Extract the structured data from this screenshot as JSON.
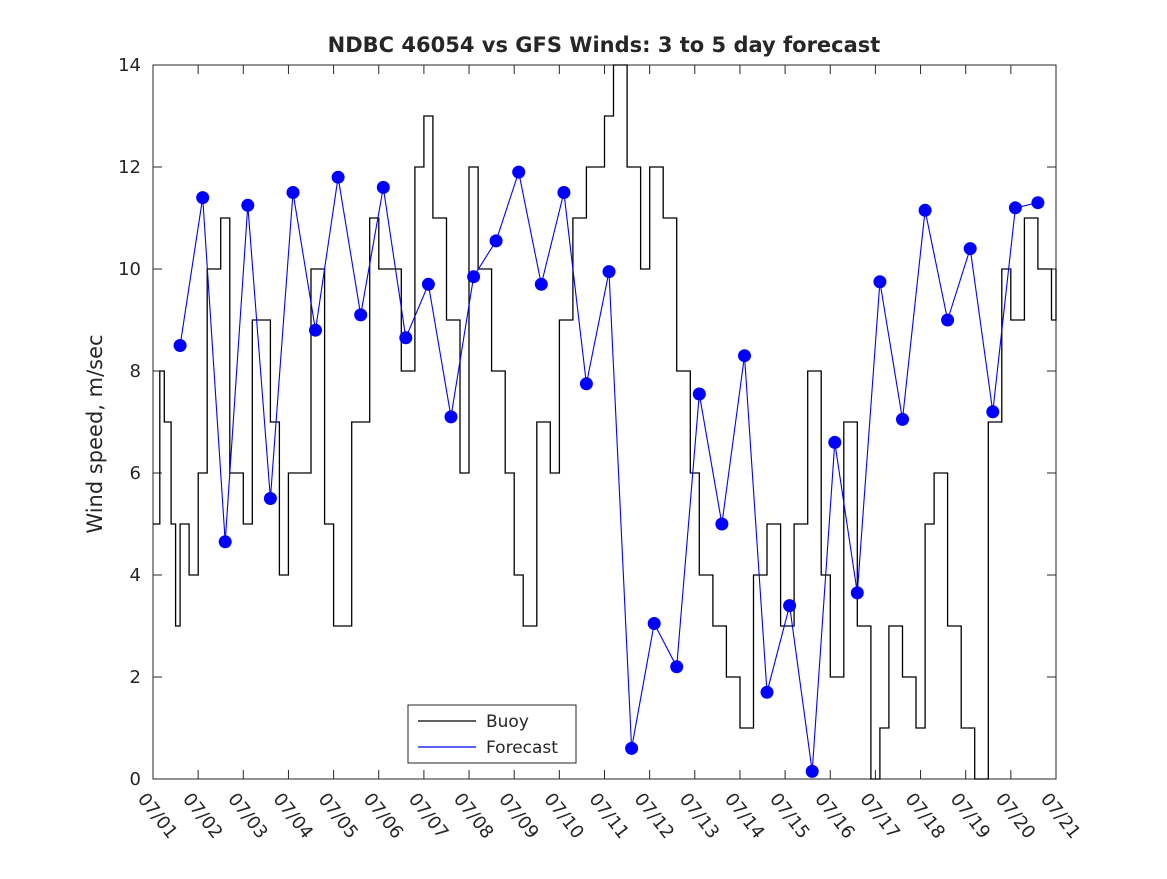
{
  "chart_data": {
    "type": "line",
    "title": "NDBC 46054 vs GFS Winds: 3 to 5 day forecast",
    "xlabel": "",
    "ylabel": "Wind speed, m/sec",
    "x_ticks": [
      "07/01",
      "07/02",
      "07/03",
      "07/04",
      "07/05",
      "07/06",
      "07/07",
      "07/08",
      "07/09",
      "07/10",
      "07/11",
      "07/12",
      "07/13",
      "07/14",
      "07/15",
      "07/16",
      "07/17",
      "07/18",
      "07/19",
      "07/20",
      "07/21"
    ],
    "x_range_days": [
      0,
      20
    ],
    "ylim": [
      0,
      14
    ],
    "y_ticks": [
      "0",
      "2",
      "4",
      "6",
      "8",
      "10",
      "12",
      "14"
    ],
    "grid": false,
    "legend_position": "bottom-center",
    "legend": [
      "Buoy",
      "Forecast"
    ],
    "colors": {
      "buoy": "#000000",
      "forecast": "#0000ff",
      "axis": "#262626"
    },
    "buoy": {
      "name": "Buoy",
      "x": [
        0,
        0.15,
        0.25,
        0.4,
        0.5,
        0.6,
        0.8,
        1.0,
        1.2,
        1.5,
        1.7,
        2.0,
        2.2,
        2.6,
        2.8,
        3.0,
        3.5,
        3.8,
        4.0,
        4.4,
        4.8,
        5.0,
        5.5,
        5.8,
        6.0,
        6.2,
        6.5,
        6.8,
        7.0,
        7.2,
        7.5,
        7.8,
        8.0,
        8.2,
        8.5,
        8.8,
        9.0,
        9.3,
        9.6,
        10.0,
        10.2,
        10.5,
        10.8,
        11.0,
        11.3,
        11.6,
        11.9,
        12.1,
        12.4,
        12.7,
        13.0,
        13.3,
        13.6,
        13.9,
        14.2,
        14.5,
        14.8,
        15.0,
        15.3,
        15.6,
        15.9,
        16.1,
        16.3,
        16.6,
        16.9,
        17.1,
        17.3,
        17.6,
        17.9,
        18.2,
        18.5,
        18.8,
        19.0,
        19.3,
        19.6,
        19.9,
        20.0
      ],
      "y": [
        5,
        8,
        7,
        5,
        3,
        5,
        4,
        6,
        10,
        11,
        6,
        5,
        9,
        7,
        4,
        6,
        10,
        5,
        3,
        7,
        11,
        10,
        8,
        12,
        13,
        11,
        9,
        6,
        12,
        10,
        8,
        6,
        4,
        3,
        7,
        6,
        9,
        11,
        12,
        13,
        14,
        12,
        10,
        12,
        11,
        8,
        6,
        4,
        3,
        2,
        1,
        4,
        5,
        3,
        5,
        8,
        4,
        2,
        7,
        3,
        0,
        1,
        3,
        2,
        1,
        5,
        6,
        3,
        1,
        0,
        7,
        10,
        9,
        11,
        10,
        9,
        10
      ]
    },
    "forecast_markers": {
      "name": "Forecast",
      "x": [
        0.6,
        1.1,
        1.6,
        2.1,
        2.6,
        3.1,
        3.6,
        4.1,
        4.6,
        5.1,
        5.6,
        6.1,
        6.6,
        7.1,
        7.6,
        8.1,
        8.6,
        9.1,
        9.6,
        10.1,
        10.6,
        11.1,
        11.6,
        12.1,
        12.6,
        13.1,
        13.6,
        14.1,
        14.6,
        15.1,
        15.6,
        16.1,
        16.6,
        17.1,
        17.6,
        18.1,
        18.6,
        19.1,
        19.6
      ],
      "y": [
        8.5,
        11.4,
        4.65,
        11.25,
        5.5,
        11.5,
        8.8,
        11.8,
        9.1,
        11.6,
        8.65,
        9.7,
        7.1,
        9.85,
        10.55,
        11.9,
        9.7,
        11.5,
        7.75,
        9.95,
        0.6,
        3.05,
        2.2,
        7.55,
        5.0,
        8.3,
        1.7,
        3.4,
        0.15,
        6.6,
        3.65,
        9.75,
        7.05,
        11.15,
        9.0,
        10.4,
        7.2,
        11.2,
        11.3
      ]
    }
  }
}
